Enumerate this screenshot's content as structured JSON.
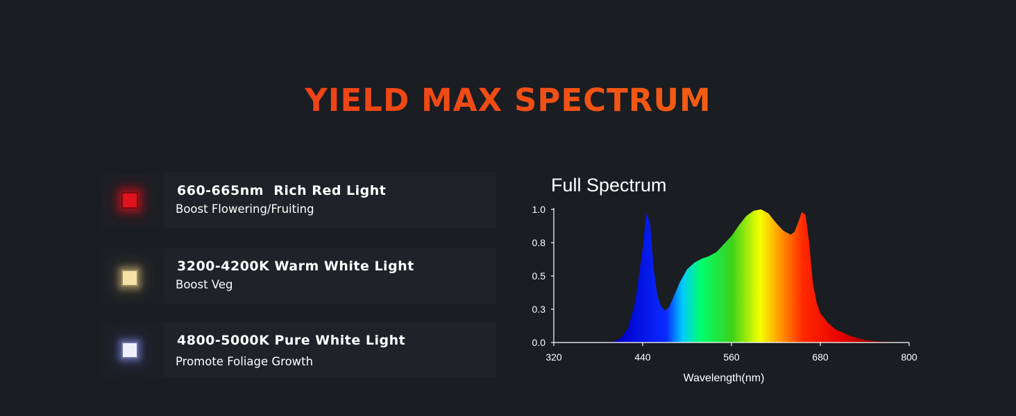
{
  "page": {
    "title": "YIELD MAX SPECTRUM"
  },
  "lights": [
    {
      "heading": "660-665nm  Rich Red Light",
      "description": "Boost Flowering/Fruiting",
      "led_color": "#e0121d"
    },
    {
      "heading": "3200-4200K Warm White Light",
      "description": "Boost Veg",
      "led_color": "#f5e2a6"
    },
    {
      "heading": "4800-5000K Pure White Light",
      "description": "Promote Foliage Growth",
      "led_color": "#eef0ff"
    }
  ],
  "chart_data": {
    "type": "area",
    "title": "Full Spectrum",
    "xlabel": "Wavelength(nm)",
    "ylabel": "",
    "xlim": [
      320,
      800
    ],
    "ylim": [
      0,
      1.0
    ],
    "x_ticks": [
      "320",
      "440",
      "560",
      "680",
      "800"
    ],
    "y_ticks": [
      "0.0",
      "0.3",
      "0.5",
      "0.8",
      "1.0"
    ],
    "grid": false,
    "fill": "rainbow gradient by wavelength",
    "x": [
      380,
      400,
      410,
      420,
      430,
      440,
      445,
      450,
      455,
      460,
      465,
      470,
      475,
      480,
      490,
      500,
      510,
      520,
      530,
      540,
      550,
      560,
      570,
      580,
      590,
      600,
      610,
      620,
      630,
      640,
      645,
      650,
      655,
      660,
      665,
      670,
      675,
      680,
      690,
      700,
      720,
      740,
      760,
      780,
      800
    ],
    "y": [
      0.0,
      0.005,
      0.03,
      0.1,
      0.3,
      0.7,
      0.97,
      0.9,
      0.55,
      0.35,
      0.27,
      0.24,
      0.26,
      0.32,
      0.45,
      0.55,
      0.6,
      0.63,
      0.65,
      0.68,
      0.74,
      0.8,
      0.88,
      0.95,
      0.99,
      1.0,
      0.97,
      0.9,
      0.84,
      0.81,
      0.83,
      0.9,
      0.98,
      0.96,
      0.75,
      0.45,
      0.3,
      0.22,
      0.15,
      0.1,
      0.05,
      0.02,
      0.008,
      0.002,
      0.0
    ]
  }
}
